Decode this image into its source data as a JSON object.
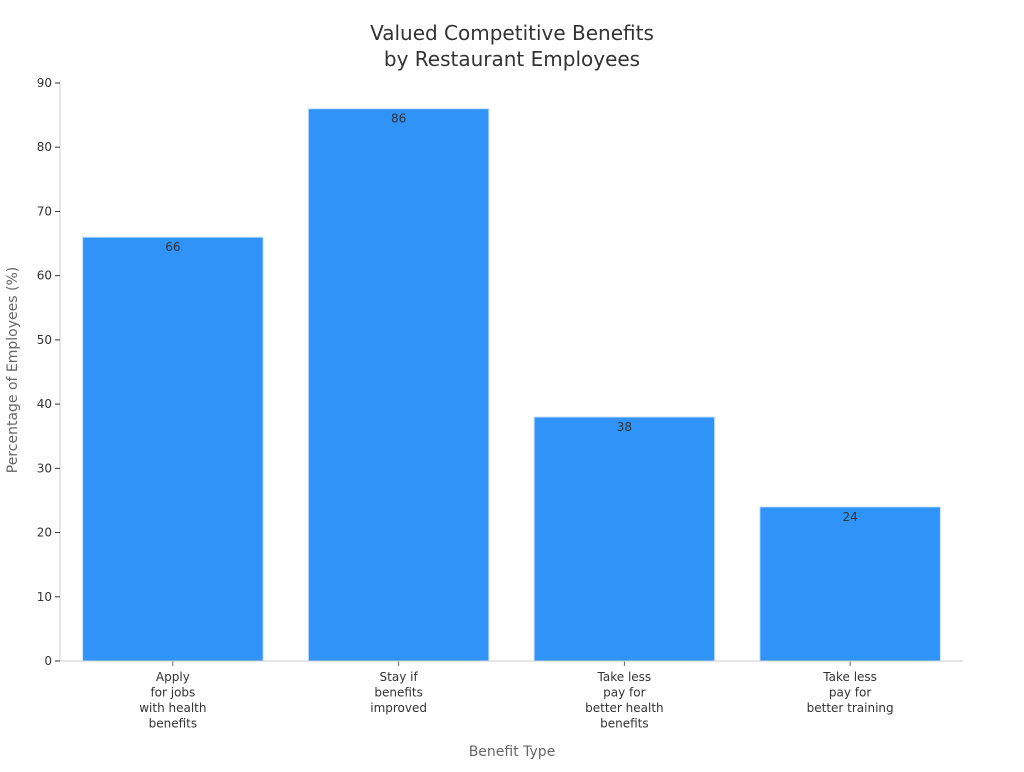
{
  "chart_data": {
    "type": "bar",
    "title": "Valued Competitive Benefits\nby Restaurant Employees",
    "xlabel": "Benefit Type",
    "ylabel": "Percentage of Employees (%)",
    "categories": [
      "Apply\nfor jobs\nwith health\nbenefits",
      "Stay if\nbenefits\nimproved",
      "Take less\npay for\nbetter health\nbenefits",
      "Take less\npay for\nbetter training"
    ],
    "values": [
      66,
      86,
      38,
      24
    ],
    "data_labels": [
      "66",
      "86",
      "38",
      "24"
    ],
    "ylim": [
      0,
      90
    ],
    "yticks": [
      0,
      10,
      20,
      30,
      40,
      50,
      60,
      70,
      80,
      90
    ],
    "grid": false,
    "bar_color": "#2f93f8"
  }
}
